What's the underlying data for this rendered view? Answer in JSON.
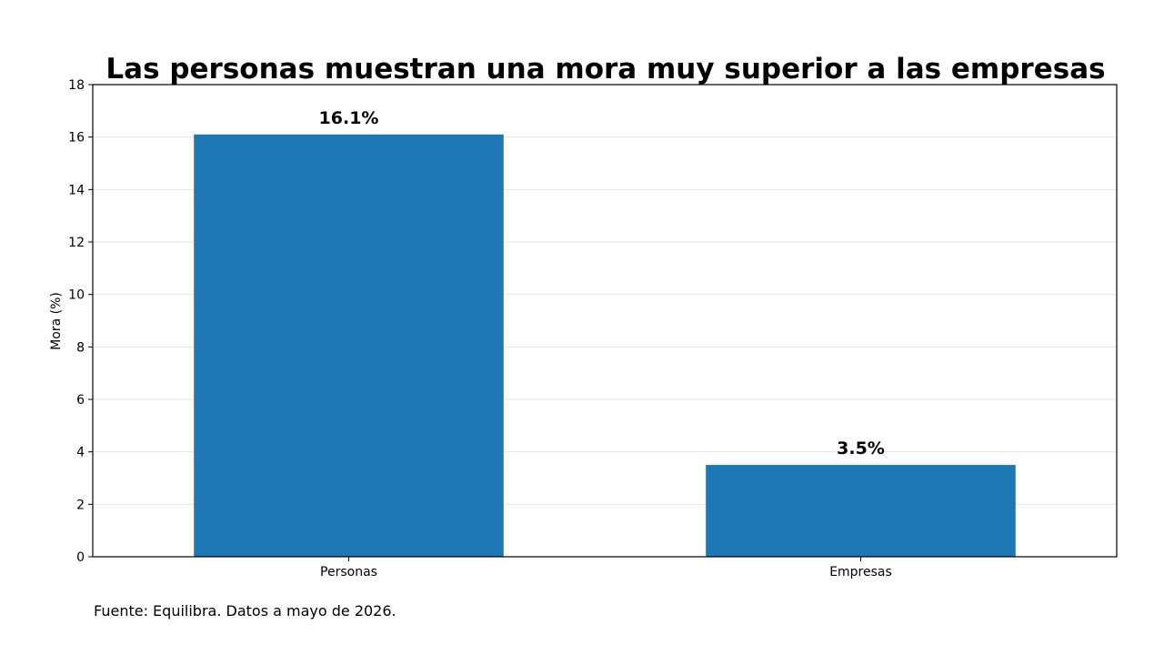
{
  "chart_data": {
    "type": "bar",
    "title": "Las personas muestran una mora muy superior a las empresas",
    "xlabel": "",
    "ylabel": "Mora (%)",
    "categories": [
      "Personas",
      "Empresas"
    ],
    "values": [
      16.1,
      3.5
    ],
    "data_labels": [
      "16.1%",
      "3.5%"
    ],
    "ylim": [
      0,
      18
    ],
    "yticks": [
      0,
      2,
      4,
      6,
      8,
      10,
      12,
      14,
      16,
      18
    ],
    "grid": "horizontal",
    "legend": "none",
    "bar_color": "#1f77b4",
    "grid_color": "#e6e6e6"
  },
  "source_note": "Fuente: Equilibra. Datos a mayo de 2026."
}
